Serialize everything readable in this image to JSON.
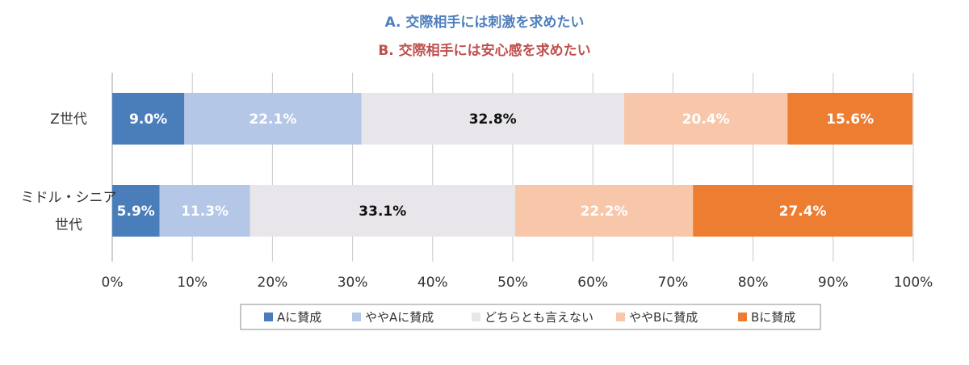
{
  "chart_data": {
    "type": "bar",
    "orientation": "horizontal",
    "stacked": true,
    "title_lines": [
      {
        "text": "A. 交際相手には刺激を求めたい",
        "color": "#4e80bd"
      },
      {
        "text": "B. 交際相手には安心感を求めたい",
        "color": "#c0504d"
      }
    ],
    "categories": [
      {
        "lines": [
          "Z世代"
        ]
      },
      {
        "lines": [
          "ミドル・シニア",
          "世代"
        ]
      }
    ],
    "series": [
      {
        "name": "Aに賛成",
        "color": "#4a7ebb",
        "label_color": "#ffffff",
        "values": [
          9.0,
          5.9
        ],
        "labels": [
          "9.0%",
          "5.9%"
        ]
      },
      {
        "name": "ややAに賛成",
        "color": "#b4c7e7",
        "label_color": "#ffffff",
        "values": [
          22.1,
          11.3
        ],
        "labels": [
          "22.1%",
          "11.3%"
        ]
      },
      {
        "name": "どちらとも言えない",
        "color": "#e8e6ea",
        "label_color": "#111111",
        "values": [
          32.8,
          33.1
        ],
        "labels": [
          "32.8%",
          "33.1%"
        ]
      },
      {
        "name": "ややBに賛成",
        "color": "#f8c7a9",
        "label_color": "#ffffff",
        "values": [
          20.4,
          22.2
        ],
        "labels": [
          "20.4%",
          "22.2%"
        ]
      },
      {
        "name": "Bに賛成",
        "color": "#ed7d31",
        "label_color": "#ffffff",
        "values": [
          15.6,
          27.4
        ],
        "labels": [
          "15.6%",
          "27.4%"
        ]
      }
    ],
    "x_ticks": [
      "0%",
      "10%",
      "20%",
      "30%",
      "40%",
      "50%",
      "60%",
      "70%",
      "80%",
      "90%",
      "100%"
    ],
    "xlim": [
      0,
      100
    ],
    "grid": true,
    "legend_position": "bottom"
  }
}
